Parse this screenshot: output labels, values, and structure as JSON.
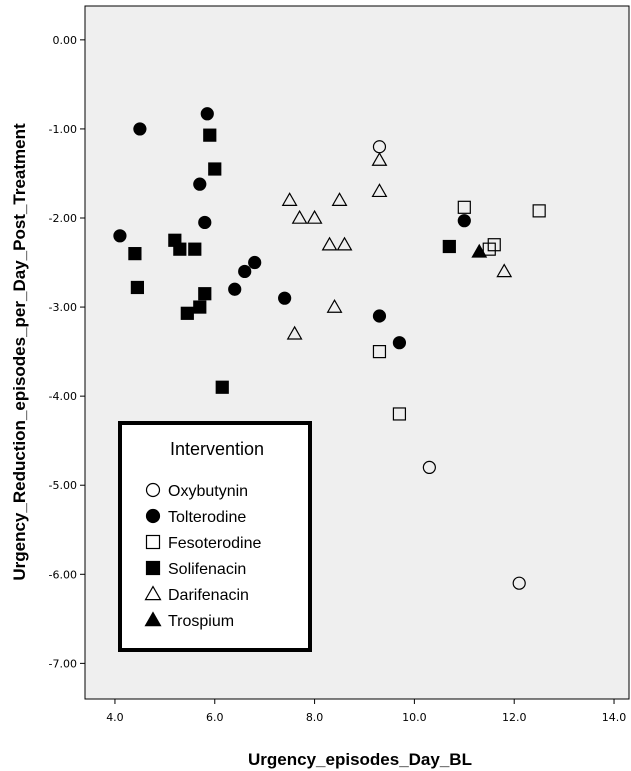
{
  "chart_data": {
    "type": "scatter",
    "xlabel": "Urgency_episodes_Day_BL",
    "ylabel": "Urgency_Reduction_episodes_per_Day_Post_Treatment",
    "xlim": [
      3.4,
      14.3
    ],
    "ylim": [
      -7.4,
      0.38
    ],
    "x_ticks": [
      "4.0",
      "6.0",
      "8.0",
      "10.0",
      "12.0",
      "14.0"
    ],
    "x_tick_values": [
      4,
      6,
      8,
      10,
      12,
      14
    ],
    "y_ticks": [
      "0.00",
      "-1.00",
      "-2.00",
      "-3.00",
      "-4.00",
      "-5.00",
      "-6.00",
      "-7.00"
    ],
    "y_tick_values": [
      0,
      -1,
      -2,
      -3,
      -4,
      -5,
      -6,
      -7
    ],
    "grid": false,
    "background": "#efefef",
    "legend": {
      "title": "Intervention",
      "placement": "bottom-left"
    },
    "series": [
      {
        "name": "Oxybutynin",
        "marker": "circle-open",
        "points": [
          [
            9.3,
            -1.2
          ],
          [
            10.3,
            -4.8
          ],
          [
            12.1,
            -6.1
          ]
        ]
      },
      {
        "name": "Tolterodine",
        "marker": "circle-filled",
        "points": [
          [
            4.1,
            -2.2
          ],
          [
            4.5,
            -1.0
          ],
          [
            5.7,
            -1.62
          ],
          [
            5.8,
            -2.05
          ],
          [
            5.85,
            -0.83
          ],
          [
            6.4,
            -2.8
          ],
          [
            6.6,
            -2.6
          ],
          [
            6.8,
            -2.5
          ],
          [
            7.4,
            -2.9
          ],
          [
            9.3,
            -3.1
          ],
          [
            9.7,
            -3.4
          ],
          [
            11.0,
            -2.03
          ]
        ]
      },
      {
        "name": "Fesoterodine",
        "marker": "square-open",
        "points": [
          [
            9.3,
            -3.5
          ],
          [
            9.7,
            -4.2
          ],
          [
            11.0,
            -1.88
          ],
          [
            11.5,
            -2.35
          ],
          [
            11.6,
            -2.3
          ],
          [
            12.5,
            -1.92
          ]
        ]
      },
      {
        "name": "Solifenacin",
        "marker": "square-filled",
        "points": [
          [
            4.4,
            -2.4
          ],
          [
            4.45,
            -2.78
          ],
          [
            5.2,
            -2.25
          ],
          [
            5.3,
            -2.35
          ],
          [
            5.45,
            -3.07
          ],
          [
            5.6,
            -2.35
          ],
          [
            5.7,
            -3.0
          ],
          [
            5.8,
            -2.85
          ],
          [
            5.9,
            -1.07
          ],
          [
            6.0,
            -1.45
          ],
          [
            6.15,
            -3.9
          ],
          [
            10.7,
            -2.32
          ]
        ]
      },
      {
        "name": "Darifenacin",
        "marker": "triangle-open",
        "points": [
          [
            7.5,
            -1.8
          ],
          [
            7.6,
            -3.3
          ],
          [
            7.7,
            -2.0
          ],
          [
            8.0,
            -2.0
          ],
          [
            8.3,
            -2.3
          ],
          [
            8.4,
            -3.0
          ],
          [
            8.5,
            -1.8
          ],
          [
            8.6,
            -2.3
          ],
          [
            9.3,
            -1.35
          ],
          [
            9.3,
            -1.7
          ],
          [
            11.8,
            -2.6
          ]
        ]
      },
      {
        "name": "Trospium",
        "marker": "triangle-filled",
        "points": [
          [
            11.3,
            -2.38
          ]
        ]
      }
    ]
  }
}
